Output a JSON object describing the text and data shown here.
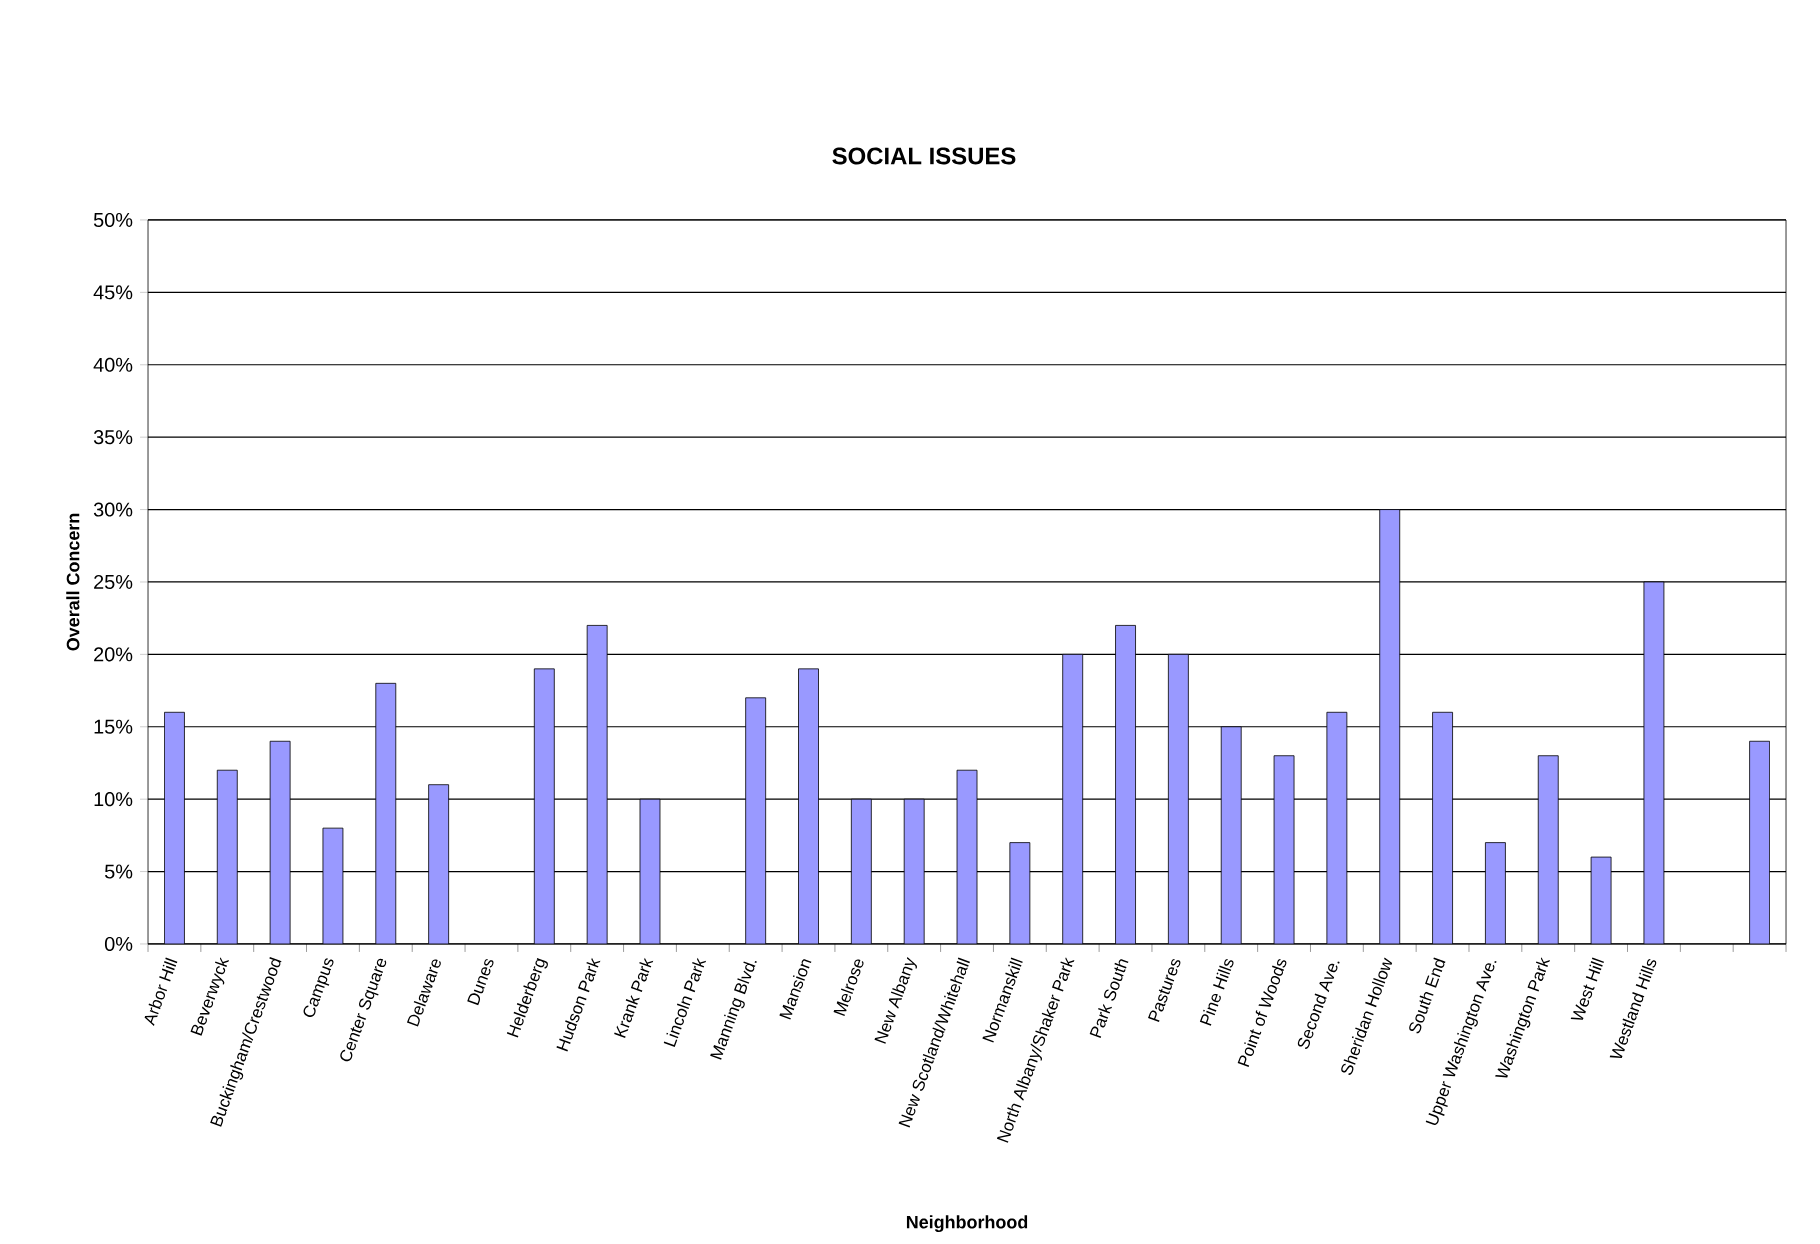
{
  "chart_data": {
    "type": "bar",
    "title": "SOCIAL ISSUES",
    "xlabel": "Neighborhood",
    "ylabel": "Overall Concern",
    "categories": [
      "Arbor Hill",
      "Beverwyck",
      "Buckingham/Crestwood",
      "Campus",
      "Center Square",
      "Delaware",
      "Dunes",
      "Helderberg",
      "Hudson Park",
      "Krank Park",
      "Lincoln Park",
      "Manning Blvd.",
      "Mansion",
      "Melrose",
      "New Albany",
      "New Scotland/Whitehall",
      "Normanskill",
      "North Albany/Shaker Park",
      "Park South",
      "Pastures",
      "Pine Hills",
      "Point of Woods",
      "Second Ave.",
      "Sheridan Hollow",
      "South End",
      "Upper Washington Ave.",
      "Washington Park",
      "West Hill",
      "Westland Hills",
      null,
      null
    ],
    "values": [
      16,
      12,
      14,
      8,
      18,
      11,
      null,
      19,
      22,
      10,
      null,
      17,
      19,
      10,
      10,
      12,
      7,
      20,
      22,
      20,
      15,
      13,
      16,
      30,
      16,
      7,
      13,
      6,
      25,
      null,
      14
    ],
    "color": "#9999ff",
    "ylim": [
      0,
      50
    ],
    "yticks": [
      {
        "value": 0,
        "label": "0%"
      },
      {
        "value": 5,
        "label": "5%"
      },
      {
        "value": 10,
        "label": "10%"
      },
      {
        "value": 15,
        "label": "15%"
      },
      {
        "value": 20,
        "label": "20%"
      },
      {
        "value": 25,
        "label": "25%"
      },
      {
        "value": 30,
        "label": "30%"
      },
      {
        "value": 35,
        "label": "35%"
      },
      {
        "value": 40,
        "label": "40%"
      },
      {
        "value": 45,
        "label": "45%"
      },
      {
        "value": 50,
        "label": "50%"
      }
    ],
    "grid": "y"
  }
}
